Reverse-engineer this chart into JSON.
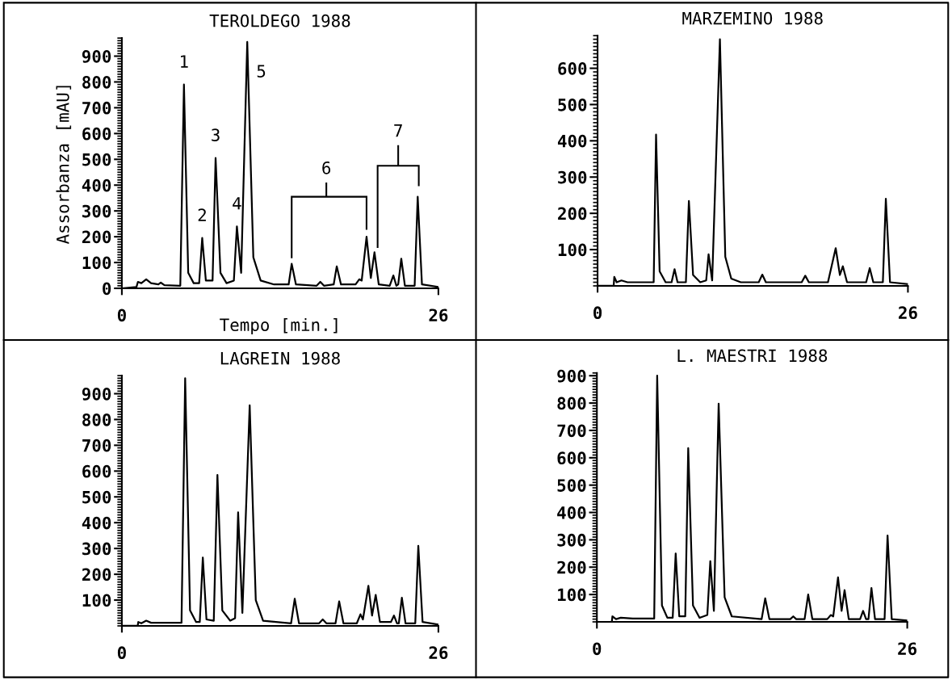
{
  "chart_data": [
    {
      "type": "line",
      "title": "TEROLDEGO 1988",
      "xlabel": "Tempo [min.]",
      "ylabel": "Assorbanza [mAU]",
      "xlim": [
        0,
        26
      ],
      "xticks": [
        0,
        26
      ],
      "ylim": [
        0,
        970
      ],
      "yticks": [
        0,
        100,
        200,
        300,
        400,
        500,
        600,
        700,
        800,
        900
      ],
      "grid": false,
      "legend": false,
      "series": [
        {
          "color": "#000000",
          "x": [
            0,
            1.2,
            1.32,
            1.6,
            2.0,
            2.4,
            3.0,
            3.2,
            3.5,
            4.8,
            5.1,
            5.45,
            5.9,
            6.35,
            6.6,
            6.9,
            7.45,
            7.7,
            8.1,
            8.6,
            9.2,
            9.45,
            9.8,
            10.3,
            10.8,
            11.4,
            12.5,
            13.7,
            13.95,
            14.3,
            16.0,
            16.3,
            16.6,
            17.4,
            17.65,
            18.0,
            19.2,
            19.5,
            19.7,
            20.1,
            20.45,
            20.75,
            21.1,
            22.0,
            22.3,
            22.55,
            22.7,
            22.95,
            23.25,
            24.05,
            24.3,
            24.65,
            26
          ],
          "values": [
            0,
            5,
            25,
            20,
            35,
            20,
            15,
            22,
            12,
            10,
            790,
            60,
            20,
            20,
            195,
            30,
            30,
            505,
            60,
            20,
            30,
            240,
            60,
            955,
            120,
            30,
            15,
            15,
            95,
            15,
            10,
            25,
            10,
            15,
            85,
            15,
            15,
            35,
            30,
            200,
            40,
            140,
            15,
            10,
            50,
            10,
            15,
            115,
            10,
            10,
            355,
            15,
            5
          ]
        }
      ],
      "annotations": [
        {
          "text": "1",
          "x": 5.1,
          "y": 790
        },
        {
          "text": "2",
          "x": 6.6,
          "y": 195
        },
        {
          "text": "3",
          "x": 7.7,
          "y": 505
        },
        {
          "text": "4",
          "x": 9.45,
          "y": 240
        },
        {
          "text": "5",
          "x": 10.3,
          "y": 955
        },
        "6",
        "7"
      ]
    },
    {
      "type": "line",
      "title": "MARZEMINO 1988",
      "xlim": [
        0,
        26
      ],
      "xticks": [
        0,
        26
      ],
      "ylim": [
        0,
        690
      ],
      "yticks": [
        100,
        200,
        300,
        400,
        500,
        600
      ],
      "grid": false,
      "legend": false,
      "series": [
        {
          "color": "#000000",
          "x": [
            0,
            1.35,
            1.4,
            1.6,
            2.0,
            2.5,
            4.7,
            4.9,
            5.2,
            5.7,
            6.2,
            6.45,
            6.7,
            7.4,
            7.65,
            8.0,
            8.6,
            9.1,
            9.3,
            9.6,
            10.25,
            10.7,
            11.2,
            12.0,
            13.5,
            13.8,
            14.1,
            17.1,
            17.4,
            17.7,
            19.3,
            19.95,
            20.3,
            20.55,
            20.9,
            22.5,
            22.8,
            23.1,
            23.9,
            24.15,
            24.5,
            26
          ],
          "values": [
            0,
            0,
            25,
            10,
            15,
            10,
            10,
            417,
            40,
            10,
            10,
            46,
            10,
            10,
            234,
            30,
            10,
            15,
            87,
            15,
            680,
            80,
            20,
            10,
            10,
            31,
            10,
            10,
            28,
            10,
            10,
            104,
            30,
            54,
            10,
            10,
            49,
            10,
            10,
            240,
            10,
            5
          ]
        }
      ]
    },
    {
      "type": "line",
      "title": "LAGREIN 1988",
      "xlim": [
        0,
        26
      ],
      "xticks": [
        0,
        26
      ],
      "ylim": [
        0,
        970
      ],
      "yticks": [
        100,
        200,
        300,
        400,
        500,
        600,
        700,
        800,
        900
      ],
      "grid": false,
      "legend": false,
      "series": [
        {
          "color": "#000000",
          "x": [
            0,
            1.3,
            1.35,
            1.6,
            2.0,
            2.4,
            4.9,
            5.2,
            5.6,
            6.1,
            6.4,
            6.65,
            6.95,
            7.55,
            7.85,
            8.25,
            8.9,
            9.3,
            9.55,
            9.9,
            10.5,
            11.0,
            11.6,
            13.9,
            14.2,
            14.55,
            16.2,
            16.5,
            16.8,
            17.55,
            17.85,
            18.2,
            19.3,
            19.6,
            19.8,
            20.25,
            20.55,
            20.85,
            21.2,
            22.1,
            22.35,
            22.6,
            22.75,
            23.0,
            23.3,
            24.1,
            24.35,
            24.7,
            26
          ],
          "values": [
            0,
            0,
            15,
            10,
            20,
            12,
            12,
            960,
            60,
            15,
            15,
            265,
            25,
            20,
            585,
            60,
            20,
            30,
            440,
            50,
            855,
            100,
            20,
            10,
            105,
            10,
            10,
            25,
            10,
            10,
            95,
            10,
            10,
            45,
            25,
            155,
            40,
            120,
            15,
            15,
            40,
            10,
            10,
            109,
            10,
            10,
            310,
            15,
            5
          ]
        }
      ]
    },
    {
      "type": "line",
      "title": "L. MAESTRI 1988",
      "xlim": [
        0,
        26
      ],
      "xticks": [
        0,
        26
      ],
      "ylim": [
        0,
        910
      ],
      "yticks": [
        100,
        200,
        300,
        400,
        500,
        600,
        700,
        800,
        900
      ],
      "grid": false,
      "legend": false,
      "series": [
        {
          "color": "#000000",
          "x": [
            0,
            1.25,
            1.3,
            1.6,
            2.0,
            3.0,
            4.8,
            5.05,
            5.45,
            5.9,
            6.35,
            6.6,
            6.9,
            7.4,
            7.65,
            8.05,
            8.6,
            9.25,
            9.5,
            9.8,
            10.2,
            10.7,
            11.3,
            13.8,
            14.1,
            14.45,
            16.2,
            16.45,
            16.7,
            17.4,
            17.7,
            18.05,
            19.3,
            19.6,
            19.8,
            20.2,
            20.5,
            20.75,
            21.1,
            22.05,
            22.3,
            22.55,
            22.75,
            23.0,
            23.3,
            24.1,
            24.35,
            24.7,
            26
          ],
          "values": [
            0,
            0,
            20,
            10,
            15,
            12,
            12,
            900,
            60,
            15,
            15,
            250,
            20,
            20,
            635,
            60,
            15,
            25,
            222,
            40,
            798,
            90,
            20,
            10,
            86,
            10,
            10,
            20,
            10,
            10,
            100,
            10,
            10,
            25,
            20,
            163,
            40,
            116,
            10,
            10,
            40,
            10,
            10,
            124,
            10,
            10,
            316,
            10,
            5
          ]
        }
      ]
    }
  ]
}
